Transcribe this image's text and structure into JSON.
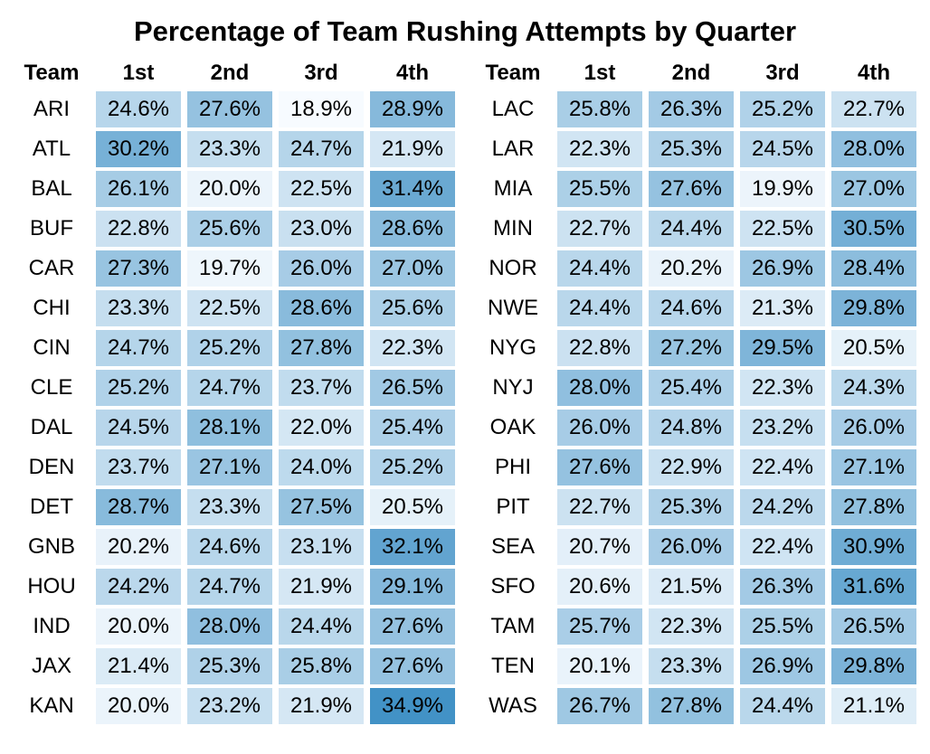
{
  "title": "Percentage of Team Rushing Attempts by Quarter",
  "chart_data": {
    "type": "heatmap",
    "title": "Percentage of Team Rushing Attempts by Quarter",
    "column_headers": [
      "Team",
      "1st",
      "2nd",
      "3rd",
      "4th"
    ],
    "value_format": {
      "decimals": 1,
      "suffix": "%"
    },
    "text_color": "#000000",
    "background_color": "#ffffff",
    "color_scale": {
      "min_value": 18.9,
      "max_value": 34.9,
      "low_color": "#F7FBFF",
      "high_color": "#4292C6"
    },
    "tables": [
      {
        "rows": [
          {
            "team": "ARI",
            "values": [
              24.6,
              27.6,
              18.9,
              28.9
            ]
          },
          {
            "team": "ATL",
            "values": [
              30.2,
              23.3,
              24.7,
              21.9
            ]
          },
          {
            "team": "BAL",
            "values": [
              26.1,
              20.0,
              22.5,
              31.4
            ]
          },
          {
            "team": "BUF",
            "values": [
              22.8,
              25.6,
              23.0,
              28.6
            ]
          },
          {
            "team": "CAR",
            "values": [
              27.3,
              19.7,
              26.0,
              27.0
            ]
          },
          {
            "team": "CHI",
            "values": [
              23.3,
              22.5,
              28.6,
              25.6
            ]
          },
          {
            "team": "CIN",
            "values": [
              24.7,
              25.2,
              27.8,
              22.3
            ]
          },
          {
            "team": "CLE",
            "values": [
              25.2,
              24.7,
              23.7,
              26.5
            ]
          },
          {
            "team": "DAL",
            "values": [
              24.5,
              28.1,
              22.0,
              25.4
            ]
          },
          {
            "team": "DEN",
            "values": [
              23.7,
              27.1,
              24.0,
              25.2
            ]
          },
          {
            "team": "DET",
            "values": [
              28.7,
              23.3,
              27.5,
              20.5
            ]
          },
          {
            "team": "GNB",
            "values": [
              20.2,
              24.6,
              23.1,
              32.1
            ]
          },
          {
            "team": "HOU",
            "values": [
              24.2,
              24.7,
              21.9,
              29.1
            ]
          },
          {
            "team": "IND",
            "values": [
              20.0,
              28.0,
              24.4,
              27.6
            ]
          },
          {
            "team": "JAX",
            "values": [
              21.4,
              25.3,
              25.8,
              27.6
            ]
          },
          {
            "team": "KAN",
            "values": [
              20.0,
              23.2,
              21.9,
              34.9
            ]
          }
        ]
      },
      {
        "rows": [
          {
            "team": "LAC",
            "values": [
              25.8,
              26.3,
              25.2,
              22.7
            ]
          },
          {
            "team": "LAR",
            "values": [
              22.3,
              25.3,
              24.5,
              28.0
            ]
          },
          {
            "team": "MIA",
            "values": [
              25.5,
              27.6,
              19.9,
              27.0
            ]
          },
          {
            "team": "MIN",
            "values": [
              22.7,
              24.4,
              22.5,
              30.5
            ]
          },
          {
            "team": "NOR",
            "values": [
              24.4,
              20.2,
              26.9,
              28.4
            ]
          },
          {
            "team": "NWE",
            "values": [
              24.4,
              24.6,
              21.3,
              29.8
            ]
          },
          {
            "team": "NYG",
            "values": [
              22.8,
              27.2,
              29.5,
              20.5
            ]
          },
          {
            "team": "NYJ",
            "values": [
              28.0,
              25.4,
              22.3,
              24.3
            ]
          },
          {
            "team": "OAK",
            "values": [
              26.0,
              24.8,
              23.2,
              26.0
            ]
          },
          {
            "team": "PHI",
            "values": [
              27.6,
              22.9,
              22.4,
              27.1
            ]
          },
          {
            "team": "PIT",
            "values": [
              22.7,
              25.3,
              24.2,
              27.8
            ]
          },
          {
            "team": "SEA",
            "values": [
              20.7,
              26.0,
              22.4,
              30.9
            ]
          },
          {
            "team": "SFO",
            "values": [
              20.6,
              21.5,
              26.3,
              31.6
            ]
          },
          {
            "team": "TAM",
            "values": [
              25.7,
              22.3,
              25.5,
              26.5
            ]
          },
          {
            "team": "TEN",
            "values": [
              20.1,
              23.3,
              26.9,
              29.8
            ]
          },
          {
            "team": "WAS",
            "values": [
              26.7,
              27.8,
              24.4,
              21.1
            ]
          }
        ]
      }
    ]
  }
}
